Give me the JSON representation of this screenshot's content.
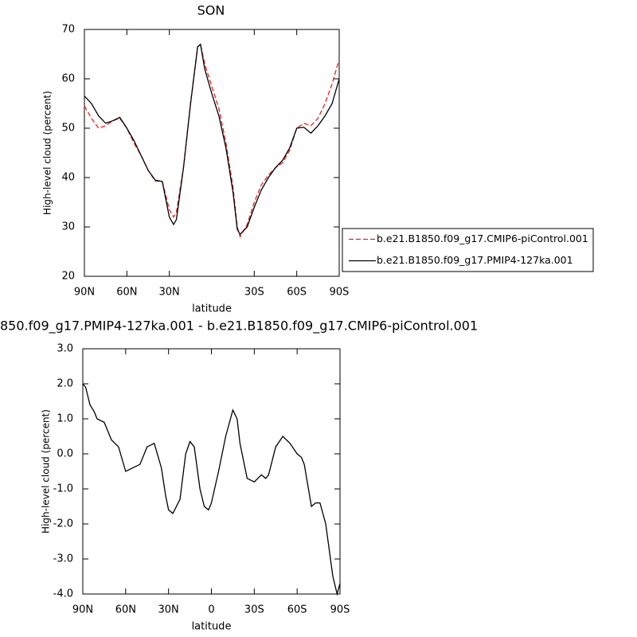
{
  "chart_data": [
    {
      "type": "line",
      "title": "SON",
      "x_label": "latitude",
      "y_label": "High-level cloud (percent)",
      "x": [
        90,
        85,
        80,
        75,
        70,
        65,
        60,
        55,
        50,
        45,
        40,
        35,
        30,
        27,
        25,
        20,
        15,
        10,
        8,
        5,
        0,
        -5,
        -10,
        -15,
        -18,
        -20,
        -25,
        -30,
        -35,
        -40,
        -45,
        -50,
        -55,
        -60,
        -65,
        -70,
        -75,
        -80,
        -85,
        -90
      ],
      "series": [
        {
          "name": "b.e21.B1850.f09_g17.CMIP6-piControl.001",
          "color": "#e8211c",
          "dash": true,
          "values": [
            54.5,
            52,
            50,
            50.5,
            51.5,
            52,
            50,
            47,
            44.5,
            41.5,
            39.3,
            39.2,
            33.5,
            32,
            33,
            42,
            55,
            66.5,
            67,
            63,
            58.5,
            54,
            47,
            38,
            30,
            28,
            30.5,
            35,
            38.5,
            40.5,
            42,
            43,
            45.5,
            50,
            51,
            50.5,
            52,
            55,
            59,
            64
          ]
        },
        {
          "name": "b.e21.B1850.f09_g17.PMIP4-127ka.001",
          "color": "#000000",
          "dash": false,
          "values": [
            56.5,
            55,
            52.5,
            51,
            51.5,
            52.2,
            50,
            47.5,
            44.5,
            41.5,
            39.5,
            39.2,
            32,
            30.5,
            31.5,
            42,
            55,
            66.5,
            67,
            62,
            57,
            52.5,
            46,
            37,
            29.5,
            28.5,
            30,
            34,
            37.5,
            40,
            42,
            43.5,
            46,
            50,
            50.2,
            49,
            50.5,
            52.5,
            55,
            60
          ]
        }
      ],
      "xlim": [
        90,
        -90
      ],
      "xticks": [
        {
          "value": 90,
          "label": "90N"
        },
        {
          "value": 60,
          "label": "60N"
        },
        {
          "value": 30,
          "label": "30N"
        },
        {
          "value": -30,
          "label": "30S"
        },
        {
          "value": -60,
          "label": "60S"
        },
        {
          "value": -90,
          "label": "90S"
        }
      ],
      "ylim": [
        20,
        70
      ],
      "yticks": [
        20,
        30,
        40,
        50,
        60,
        70
      ],
      "legend": "right"
    },
    {
      "type": "line",
      "title": "850.f09_g17.PMIP4-127ka.001 - b.e21.B1850.f09_g17.CMIP6-piControl.001",
      "x_label": "latitude",
      "y_label": "High-level cloud (percent)",
      "x": [
        90,
        88,
        85,
        82,
        80,
        75,
        70,
        65,
        60,
        55,
        50,
        45,
        40,
        35,
        32,
        30,
        27,
        22,
        18,
        15,
        12,
        8,
        5,
        2,
        0,
        -5,
        -10,
        -15,
        -18,
        -20,
        -25,
        -30,
        -35,
        -38,
        -40,
        -45,
        -50,
        -55,
        -60,
        -63,
        -65,
        -70,
        -73,
        -76,
        -80,
        -85,
        -88,
        -90
      ],
      "series": [
        {
          "color": "#000000",
          "dash": false,
          "values": [
            2.0,
            1.9,
            1.4,
            1.2,
            1.0,
            0.9,
            0.4,
            0.2,
            -0.5,
            -0.4,
            -0.3,
            0.2,
            0.3,
            -0.4,
            -1.2,
            -1.6,
            -1.7,
            -1.3,
            0.0,
            0.35,
            0.2,
            -1.0,
            -1.5,
            -1.6,
            -1.4,
            -0.5,
            0.5,
            1.25,
            1.0,
            0.3,
            -0.7,
            -0.8,
            -0.6,
            -0.7,
            -0.6,
            0.2,
            0.5,
            0.3,
            0.0,
            -0.1,
            -0.3,
            -1.5,
            -1.4,
            -1.4,
            -2.0,
            -3.5,
            -4.0,
            -3.7
          ]
        }
      ],
      "xlim": [
        90,
        -90
      ],
      "xticks": [
        {
          "value": 90,
          "label": "90N"
        },
        {
          "value": 60,
          "label": "60N"
        },
        {
          "value": 30,
          "label": "30N"
        },
        0,
        {
          "value": -30,
          "label": "30S"
        },
        {
          "value": -60,
          "label": "60S"
        },
        {
          "value": -90,
          "label": "90S"
        }
      ],
      "ylim": [
        -4,
        3
      ],
      "yticks": [
        {
          "value": -4,
          "label": "-4.0"
        },
        {
          "value": -3,
          "label": "-3.0"
        },
        {
          "value": -2,
          "label": "-2.0"
        },
        {
          "value": -1,
          "label": "-1.0"
        },
        {
          "value": 0,
          "label": "0.0"
        },
        {
          "value": 1,
          "label": "1.0"
        },
        {
          "value": 2,
          "label": "2.0"
        },
        {
          "value": 3,
          "label": "3.0"
        }
      ]
    }
  ]
}
